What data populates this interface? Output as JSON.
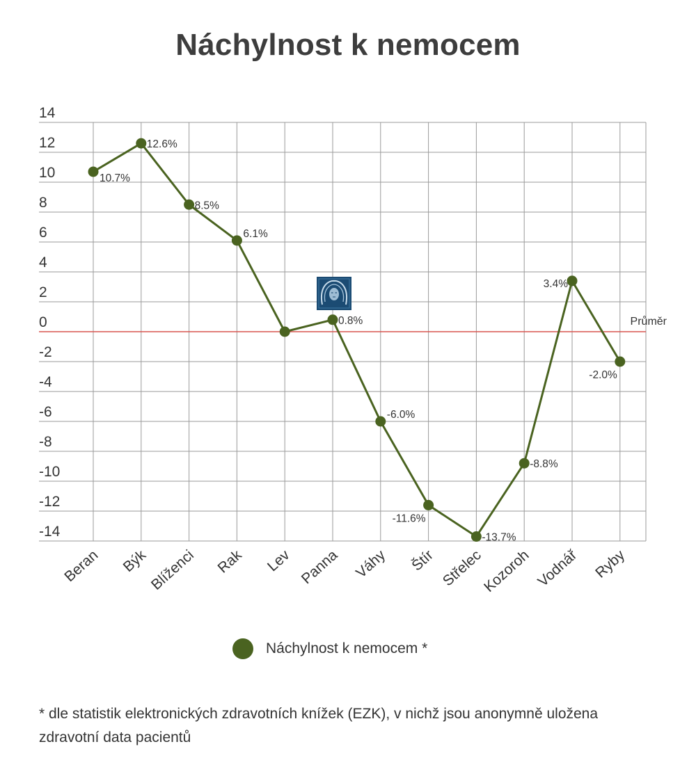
{
  "title": "Náchylnost k nemocem",
  "legend_label": "Náchylnost k nemocem *",
  "footnote": "* dle statistik elektronických zdravotních knížek (EZK), v nichž jsou anonymně uložena zdravotní data pacientů",
  "colors": {
    "series": "#4a6320",
    "average_line": "#d9534f",
    "grid": "#9a9a9a"
  },
  "chart_data": {
    "type": "line",
    "title": "Náchylnost k nemocem",
    "categories": [
      "Beran",
      "Býk",
      "Blíženci",
      "Rak",
      "Lev",
      "Panna",
      "Váhy",
      "Štír",
      "Střelec",
      "Kozoroh",
      "Vodnář",
      "Ryby"
    ],
    "series": [
      {
        "name": "Náchylnost k nemocem *",
        "values": [
          10.7,
          12.6,
          8.5,
          6.1,
          0.0,
          0.8,
          -6.0,
          -11.6,
          -13.7,
          -8.8,
          3.4,
          -2.0
        ],
        "labels": [
          "10.7%",
          "12.6%",
          "8.5%",
          "6.1%",
          "",
          "0.8%",
          "-6.0%",
          "-11.6%",
          "-13.7%",
          "-8.8%",
          "3.4%",
          "-2.0%"
        ]
      }
    ],
    "yticks": [
      14,
      12,
      10,
      8,
      6,
      4,
      2,
      0,
      -2,
      -4,
      -6,
      -8,
      -10,
      -12,
      -14
    ],
    "ylim": [
      -14,
      14
    ],
    "reference_line": {
      "value": 0,
      "label": "Průměr"
    },
    "highlight_category": "Panna",
    "highlight_icon": "virgo-face-icon",
    "grid": true,
    "legend_position": "bottom"
  }
}
